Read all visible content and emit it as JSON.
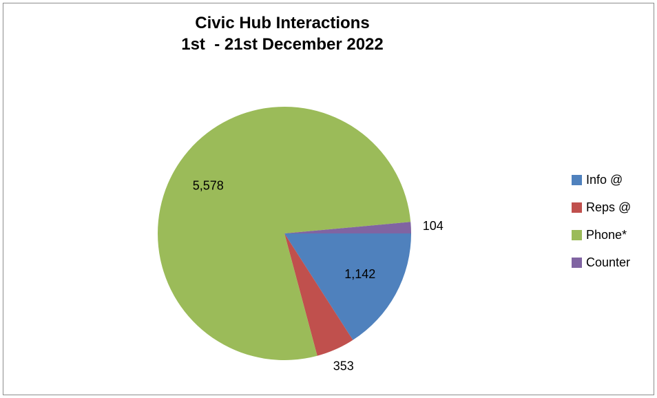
{
  "chart_data": {
    "type": "pie",
    "title": "Civic Hub Interactions",
    "subtitle": "1st  - 21st December 2022",
    "categories": [
      "Info @",
      "Reps @",
      "Phone*",
      "Counter"
    ],
    "values": [
      1142,
      353,
      5578,
      104
    ],
    "value_labels": [
      "1,142",
      "353",
      "5,578",
      "104"
    ],
    "colors": [
      "#4F81BD",
      "#C0504D",
      "#9BBB59",
      "#8064A2"
    ],
    "legend_position": "right"
  }
}
